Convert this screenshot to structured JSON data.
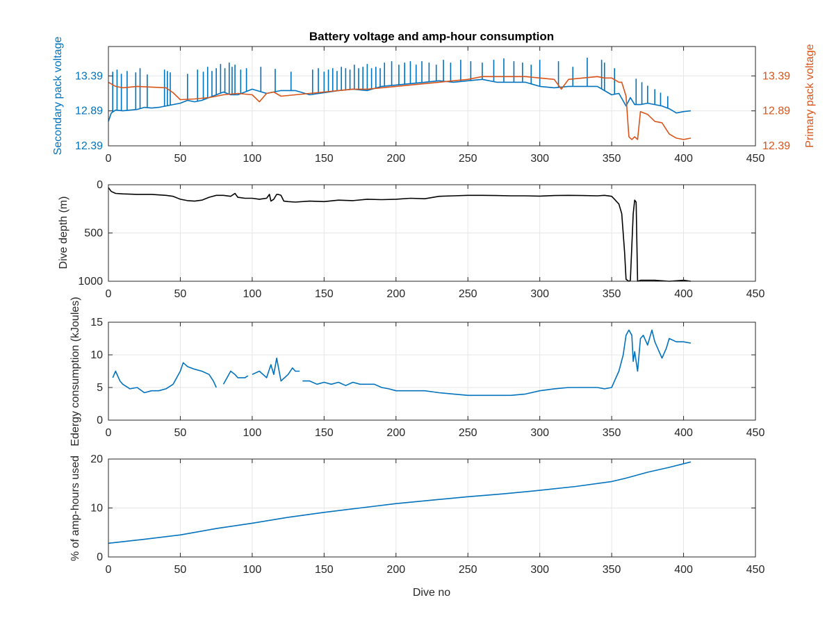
{
  "chart_data": [
    {
      "type": "line",
      "title": "Battery voltage and amp-hour consumption",
      "xlabel": "",
      "xlim": [
        0,
        450
      ],
      "xticks": [
        0,
        50,
        100,
        150,
        200,
        250,
        300,
        350,
        400,
        450
      ],
      "ylabel": "Secondary pack voltage",
      "ylim": [
        12.39,
        13.81
      ],
      "yticks": [
        12.39,
        12.89,
        13.39
      ],
      "y2label": "Primary pack voltage",
      "y2lim": [
        12.39,
        13.81
      ],
      "y2ticks": [
        12.39,
        12.89,
        13.39
      ],
      "grid": true,
      "colors": {
        "secondary": "#0072BD",
        "primary": "#D95319"
      },
      "series": [
        {
          "axis": "left",
          "x": [
            0,
            2,
            5,
            10,
            15,
            20,
            25,
            30,
            35,
            40,
            45,
            50,
            55,
            60,
            65,
            70,
            75,
            80,
            85,
            90,
            95,
            100,
            110,
            120,
            130,
            140,
            150,
            160,
            170,
            180,
            190,
            200,
            210,
            220,
            230,
            240,
            250,
            260,
            270,
            280,
            290,
            300,
            310,
            320,
            330,
            340,
            350,
            355,
            360,
            363,
            366,
            370,
            375,
            380,
            385,
            390,
            395,
            400,
            405
          ],
          "y": [
            12.74,
            12.86,
            12.9,
            12.89,
            12.9,
            12.91,
            12.94,
            12.93,
            12.94,
            12.96,
            12.98,
            13.0,
            13.04,
            13.02,
            13.04,
            13.08,
            13.12,
            13.16,
            13.12,
            13.12,
            13.16,
            13.2,
            13.14,
            13.18,
            13.18,
            13.12,
            13.15,
            13.18,
            13.2,
            13.18,
            13.24,
            13.26,
            13.28,
            13.3,
            13.32,
            13.3,
            13.32,
            13.34,
            13.3,
            13.3,
            13.3,
            13.24,
            13.22,
            13.24,
            13.24,
            13.24,
            13.12,
            13.14,
            12.96,
            13.08,
            12.98,
            12.98,
            13.0,
            12.98,
            12.96,
            12.92,
            12.86,
            12.88,
            12.89
          ],
          "spikes_x": [
            3,
            6,
            9,
            13,
            19,
            22,
            27,
            39,
            41,
            43,
            55,
            62,
            66,
            69,
            72,
            75,
            78,
            81,
            84,
            86,
            88,
            92,
            96,
            106,
            116,
            127,
            142,
            146,
            150,
            153,
            156,
            159,
            162,
            165,
            168,
            171,
            174,
            177,
            180,
            183,
            186,
            189,
            192,
            197,
            202,
            206,
            210,
            214,
            218,
            223,
            228,
            233,
            238,
            245,
            252,
            260,
            268,
            275,
            282,
            288,
            294,
            300,
            313,
            323,
            333,
            343,
            345,
            352,
            367,
            371,
            375,
            380,
            384,
            389
          ],
          "spikes_y": [
            13.45,
            13.48,
            13.42,
            13.46,
            13.44,
            13.5,
            13.41,
            13.48,
            13.46,
            13.44,
            13.42,
            13.48,
            13.45,
            13.52,
            13.46,
            13.5,
            13.56,
            13.5,
            13.58,
            13.52,
            13.55,
            13.48,
            13.5,
            13.52,
            13.49,
            13.45,
            13.48,
            13.5,
            13.45,
            13.48,
            13.5,
            13.46,
            13.52,
            13.5,
            13.48,
            13.55,
            13.5,
            13.52,
            13.56,
            13.5,
            13.52,
            13.5,
            13.58,
            13.6,
            13.55,
            13.58,
            13.6,
            13.55,
            13.6,
            13.58,
            13.55,
            13.62,
            13.58,
            13.62,
            13.6,
            13.58,
            13.62,
            13.64,
            13.6,
            13.58,
            13.55,
            13.62,
            13.6,
            13.52,
            13.65,
            13.62,
            13.58,
            13.5,
            13.35,
            13.3,
            13.25,
            13.2,
            13.15,
            13.1
          ]
        },
        {
          "axis": "right",
          "x": [
            0,
            5,
            10,
            20,
            30,
            40,
            45,
            50,
            60,
            70,
            80,
            90,
            100,
            105,
            110,
            115,
            120,
            130,
            140,
            150,
            160,
            170,
            180,
            190,
            200,
            210,
            220,
            230,
            240,
            250,
            260,
            270,
            280,
            290,
            300,
            310,
            315,
            320,
            330,
            340,
            345,
            350,
            355,
            357,
            360,
            361,
            362,
            364,
            366,
            368,
            370,
            375,
            380,
            385,
            390,
            395,
            400,
            405
          ],
          "y": [
            13.3,
            13.24,
            13.22,
            13.24,
            13.23,
            13.22,
            13.15,
            13.05,
            13.06,
            13.08,
            13.12,
            13.14,
            13.12,
            13.02,
            13.14,
            13.16,
            13.1,
            13.12,
            13.14,
            13.16,
            13.18,
            13.2,
            13.2,
            13.22,
            13.24,
            13.26,
            13.28,
            13.3,
            13.32,
            13.34,
            13.38,
            13.38,
            13.38,
            13.38,
            13.36,
            13.34,
            13.2,
            13.34,
            13.36,
            13.38,
            13.36,
            13.36,
            13.3,
            13.3,
            13.1,
            12.8,
            12.52,
            12.48,
            12.52,
            12.48,
            12.88,
            12.84,
            12.74,
            12.72,
            12.56,
            12.5,
            12.48,
            12.5
          ]
        }
      ]
    },
    {
      "type": "line",
      "title": "",
      "xlabel": "",
      "ylabel": "Dive depth (m)",
      "xlim": [
        0,
        450
      ],
      "xticks": [
        0,
        50,
        100,
        150,
        200,
        250,
        300,
        350,
        400,
        450
      ],
      "ylim": [
        0,
        1000
      ],
      "yticks": [
        0,
        500,
        1000
      ],
      "reversed_y": true,
      "grid": true,
      "series": [
        {
          "color": "#000000",
          "x": [
            0,
            2,
            5,
            10,
            20,
            30,
            40,
            45,
            50,
            55,
            60,
            65,
            70,
            75,
            80,
            85,
            88,
            90,
            95,
            100,
            105,
            110,
            112,
            113,
            115,
            117,
            118,
            120,
            122,
            125,
            130,
            140,
            150,
            160,
            170,
            180,
            190,
            200,
            210,
            220,
            230,
            240,
            250,
            260,
            270,
            280,
            290,
            300,
            310,
            320,
            330,
            340,
            345,
            350,
            352,
            355,
            357,
            359,
            360,
            362,
            363,
            365,
            366,
            367,
            368,
            370,
            380,
            390,
            400,
            405
          ],
          "y": [
            30,
            70,
            90,
            95,
            100,
            100,
            110,
            120,
            150,
            165,
            170,
            160,
            130,
            110,
            110,
            120,
            90,
            130,
            140,
            140,
            150,
            140,
            100,
            170,
            150,
            100,
            100,
            110,
            170,
            175,
            180,
            170,
            175,
            160,
            165,
            150,
            155,
            150,
            140,
            145,
            120,
            115,
            110,
            110,
            112,
            115,
            115,
            118,
            112,
            110,
            112,
            115,
            110,
            120,
            150,
            200,
            300,
            700,
            980,
            1000,
            990,
            300,
            160,
            180,
            1000,
            990,
            990,
            1000,
            990,
            1000
          ]
        }
      ]
    },
    {
      "type": "line",
      "title": "",
      "xlabel": "",
      "ylabel": "Edergy consumption (kJoules)",
      "xlim": [
        0,
        450
      ],
      "xticks": [
        0,
        50,
        100,
        150,
        200,
        250,
        300,
        350,
        400,
        450
      ],
      "ylim": [
        0,
        15
      ],
      "yticks": [
        0,
        5,
        10,
        15
      ],
      "grid": true,
      "series": [
        {
          "color": "#0072BD",
          "x": [
            3,
            5,
            8,
            10,
            15,
            20,
            25,
            30,
            35,
            40,
            45,
            50,
            52,
            55,
            60,
            65,
            70,
            73,
            75,
            null,
            80,
            85,
            88,
            90,
            95,
            97,
            null,
            100,
            105,
            110,
            113,
            115,
            117,
            120,
            125,
            128,
            130,
            133,
            null,
            135,
            140,
            145,
            150,
            155,
            160,
            165,
            170,
            175,
            180,
            null,
            180,
            185,
            190,
            195,
            200,
            210,
            220,
            230,
            240,
            250,
            260,
            270,
            280,
            290,
            300,
            310,
            320,
            330,
            340,
            345,
            350,
            352,
            355,
            358,
            360,
            362,
            364,
            365,
            366,
            368,
            370,
            372,
            375,
            378,
            380,
            383,
            385,
            388,
            390,
            395,
            400,
            405
          ],
          "y": [
            6.5,
            7.5,
            6.0,
            5.5,
            4.8,
            5.0,
            4.2,
            4.5,
            4.5,
            4.8,
            5.5,
            7.5,
            8.8,
            8.2,
            7.8,
            7.5,
            7.0,
            6.0,
            5.0,
            null,
            5.5,
            7.5,
            7.0,
            6.5,
            6.5,
            6.8,
            null,
            7.0,
            7.5,
            6.5,
            8.5,
            7.0,
            9.5,
            6.0,
            7.0,
            8.0,
            7.5,
            7.5,
            null,
            6.0,
            6.0,
            5.5,
            5.8,
            5.5,
            5.8,
            5.3,
            5.8,
            5.5,
            5.5,
            null,
            5.5,
            5.5,
            5.0,
            4.8,
            4.5,
            4.5,
            4.5,
            4.2,
            4.0,
            3.8,
            3.8,
            3.8,
            3.8,
            4.0,
            4.5,
            4.8,
            5.0,
            5.0,
            5.0,
            4.8,
            5.0,
            6.0,
            7.5,
            10.0,
            13.0,
            13.8,
            13.0,
            9.0,
            10.5,
            7.5,
            12.5,
            13.0,
            11.5,
            13.8,
            12.0,
            10.5,
            9.5,
            11.0,
            12.5,
            12.0,
            12.0,
            11.8
          ]
        }
      ]
    },
    {
      "type": "line",
      "title": "",
      "xlabel": "Dive no",
      "ylabel": "% of amp-hours used",
      "xlim": [
        0,
        450
      ],
      "xticks": [
        0,
        50,
        100,
        150,
        200,
        250,
        300,
        350,
        400,
        450
      ],
      "ylim": [
        0,
        20
      ],
      "yticks": [
        0,
        10,
        20
      ],
      "grid": true,
      "series": [
        {
          "color": "#0072BD",
          "x": [
            0,
            25,
            50,
            75,
            100,
            125,
            150,
            175,
            200,
            225,
            250,
            275,
            300,
            325,
            350,
            360,
            375,
            390,
            405
          ],
          "y": [
            2.8,
            3.6,
            4.5,
            5.8,
            6.9,
            8.1,
            9.1,
            10.0,
            10.9,
            11.6,
            12.3,
            12.9,
            13.6,
            14.4,
            15.4,
            16.1,
            17.3,
            18.3,
            19.4
          ]
        }
      ]
    }
  ]
}
